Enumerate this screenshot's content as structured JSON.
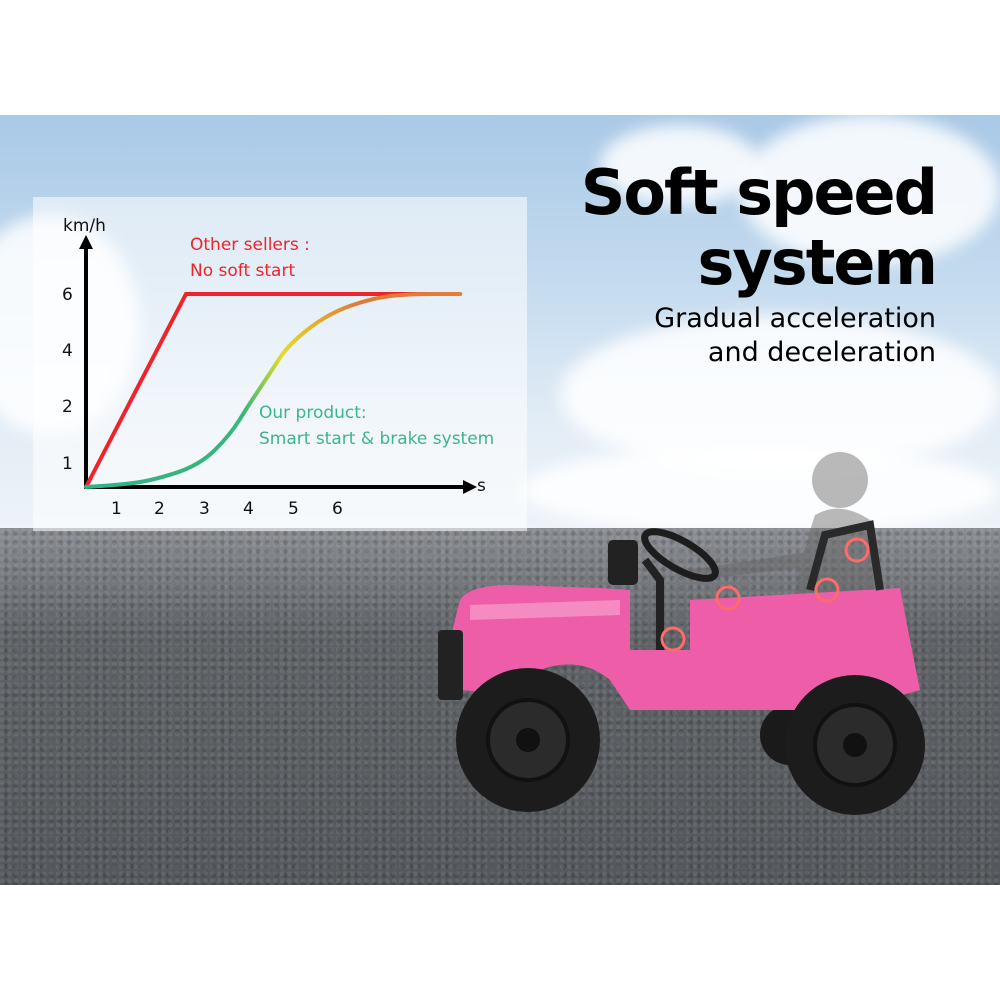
{
  "headline": {
    "title_line1": "Soft speed",
    "title_line2": "system",
    "subtitle_line1": "Gradual acceleration",
    "subtitle_line2": "and deceleration"
  },
  "chart_data": {
    "type": "line",
    "ylabel": "km/h",
    "xlabel": "s",
    "x_ticks": [
      "1",
      "2",
      "3",
      "4",
      "5",
      "6"
    ],
    "y_ticks": [
      "1",
      "2",
      "4",
      "6"
    ],
    "grid": false,
    "series": [
      {
        "name": "Other sellers : No soft start",
        "label_line1": "Other sellers :",
        "label_line2": "No soft start",
        "color": "#f0222a",
        "x": [
          0,
          2.6,
          8.8
        ],
        "y": [
          0,
          6,
          6
        ]
      },
      {
        "name": "Our product: Smart start & brake system",
        "label_line1": "Our product:",
        "label_line2": "Smart start & brake system",
        "color": "#3bb68a",
        "colors": [
          "#2fb38a",
          "#e3dc2a",
          "#e07a35"
        ],
        "x": [
          0,
          1.0,
          1.8,
          2.9,
          3.6,
          4.0,
          4.5,
          4.9,
          5.8,
          6.8,
          7.6,
          8.8
        ],
        "y": [
          0,
          0.08,
          0.25,
          0.9,
          1.5,
          2.0,
          3.2,
          4.2,
          5.3,
          5.85,
          6,
          6
        ]
      }
    ]
  },
  "colors": {
    "red": "#f0222a",
    "green": "#3bb68a",
    "car_body": "#ee5ea8"
  }
}
